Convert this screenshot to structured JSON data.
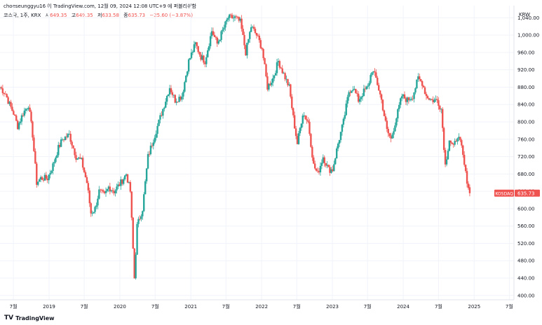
{
  "header": {
    "attribution": "choeseunggyu16 이 TradingView.com, 12월 09, 2024 12:08 UTC+9 에 퍼블리쉬함"
  },
  "legend": {
    "symbol": "코스닥, 1주, KRX",
    "open_label": "시",
    "open_value": "649.35",
    "high_label": "고",
    "high_value": "649.35",
    "low_label": "저",
    "low_value": "633.58",
    "close_label": "종",
    "close_value": "635.73",
    "change": "−25.60 (−3.87%)"
  },
  "currency": "KRW",
  "footer": {
    "brand": "TradingView",
    "logo_icon": "tradingview-logo-icon"
  },
  "colors": {
    "up": "#26a69a",
    "down": "#ef5350",
    "grid": "#f0f3fa",
    "badge": "#ef5350"
  },
  "chart_data": {
    "type": "candlestick",
    "series_name": "KOSDAQ",
    "last_price_label": "KOSDAQ",
    "last_price": "635.73",
    "ylim": [
      390,
      1068
    ],
    "y_ticks": [
      "400.00",
      "440.00",
      "480.00",
      "520.00",
      "560.00",
      "600.00",
      "640.00",
      "680.00",
      "720.00",
      "760.00",
      "800.00",
      "840.00",
      "880.00",
      "920.00",
      "960.00",
      "1,000.00",
      "1,040.00"
    ],
    "x_ticks": [
      "7월",
      "2019",
      "7월",
      "2020",
      "7월",
      "2021",
      "7월",
      "2022",
      "7월",
      "2023",
      "7월",
      "2024",
      "7월",
      "2025",
      "7월"
    ],
    "x_tick_dates": [
      "2018-07-01",
      "2019-01-01",
      "2019-07-01",
      "2020-01-01",
      "2020-07-01",
      "2021-01-01",
      "2021-07-01",
      "2022-01-01",
      "2022-07-01",
      "2023-01-01",
      "2023-07-01",
      "2024-01-01",
      "2024-07-01",
      "2025-01-01",
      "2025-07-01"
    ],
    "x_range": [
      "2018-04-23",
      "2025-07-25"
    ],
    "anchors": [
      [
        "2018-04-23",
        880
      ],
      [
        "2018-05-21",
        865
      ],
      [
        "2018-06-11",
        840
      ],
      [
        "2018-07-02",
        820
      ],
      [
        "2018-07-23",
        790
      ],
      [
        "2018-08-20",
        820
      ],
      [
        "2018-09-17",
        840
      ],
      [
        "2018-10-08",
        770
      ],
      [
        "2018-10-29",
        660
      ],
      [
        "2018-11-19",
        670
      ],
      [
        "2018-12-24",
        670
      ],
      [
        "2019-01-21",
        700
      ],
      [
        "2019-02-18",
        740
      ],
      [
        "2019-03-11",
        760
      ],
      [
        "2019-04-15",
        770
      ],
      [
        "2019-05-20",
        720
      ],
      [
        "2019-06-17",
        710
      ],
      [
        "2019-07-15",
        660
      ],
      [
        "2019-08-05",
        590
      ],
      [
        "2019-08-26",
        600
      ],
      [
        "2019-09-16",
        640
      ],
      [
        "2019-10-14",
        630
      ],
      [
        "2019-11-04",
        650
      ],
      [
        "2019-12-02",
        640
      ],
      [
        "2020-01-06",
        660
      ],
      [
        "2020-02-03",
        680
      ],
      [
        "2020-02-24",
        640
      ],
      [
        "2020-03-16",
        440
      ],
      [
        "2020-03-30",
        560
      ],
      [
        "2020-04-27",
        600
      ],
      [
        "2020-05-25",
        720
      ],
      [
        "2020-06-22",
        760
      ],
      [
        "2020-07-20",
        800
      ],
      [
        "2020-08-17",
        840
      ],
      [
        "2020-09-14",
        880
      ],
      [
        "2020-10-12",
        850
      ],
      [
        "2020-11-16",
        860
      ],
      [
        "2020-12-21",
        940
      ],
      [
        "2021-01-25",
        980
      ],
      [
        "2021-02-22",
        950
      ],
      [
        "2021-03-15",
        940
      ],
      [
        "2021-04-19",
        1010
      ],
      [
        "2021-05-17",
        980
      ],
      [
        "2021-06-14",
        1010
      ],
      [
        "2021-07-12",
        1040
      ],
      [
        "2021-08-16",
        1040
      ],
      [
        "2021-09-13",
        1030
      ],
      [
        "2021-10-11",
        960
      ],
      [
        "2021-11-08",
        1020
      ],
      [
        "2021-12-06",
        1000
      ],
      [
        "2022-01-03",
        970
      ],
      [
        "2022-01-31",
        880
      ],
      [
        "2022-02-28",
        900
      ],
      [
        "2022-03-28",
        940
      ],
      [
        "2022-04-25",
        910
      ],
      [
        "2022-05-23",
        880
      ],
      [
        "2022-06-13",
        810
      ],
      [
        "2022-07-04",
        750
      ],
      [
        "2022-08-01",
        820
      ],
      [
        "2022-08-29",
        800
      ],
      [
        "2022-09-26",
        700
      ],
      [
        "2022-10-17",
        680
      ],
      [
        "2022-11-14",
        720
      ],
      [
        "2022-12-12",
        690
      ],
      [
        "2023-01-02",
        690
      ],
      [
        "2023-01-30",
        750
      ],
      [
        "2023-02-27",
        800
      ],
      [
        "2023-03-27",
        870
      ],
      [
        "2023-04-17",
        880
      ],
      [
        "2023-05-15",
        850
      ],
      [
        "2023-06-12",
        870
      ],
      [
        "2023-07-03",
        880
      ],
      [
        "2023-07-24",
        920
      ],
      [
        "2023-08-14",
        900
      ],
      [
        "2023-09-11",
        850
      ],
      [
        "2023-10-09",
        780
      ],
      [
        "2023-10-30",
        760
      ],
      [
        "2023-11-27",
        810
      ],
      [
        "2023-12-25",
        860
      ],
      [
        "2024-01-22",
        850
      ],
      [
        "2024-02-19",
        860
      ],
      [
        "2024-03-18",
        900
      ],
      [
        "2024-04-08",
        890
      ],
      [
        "2024-04-29",
        860
      ],
      [
        "2024-05-27",
        850
      ],
      [
        "2024-06-24",
        850
      ],
      [
        "2024-07-15",
        830
      ],
      [
        "2024-08-05",
        700
      ],
      [
        "2024-08-26",
        760
      ],
      [
        "2024-09-16",
        740
      ],
      [
        "2024-10-07",
        770
      ],
      [
        "2024-10-28",
        740
      ],
      [
        "2024-11-18",
        680
      ],
      [
        "2024-12-09",
        636
      ]
    ]
  }
}
